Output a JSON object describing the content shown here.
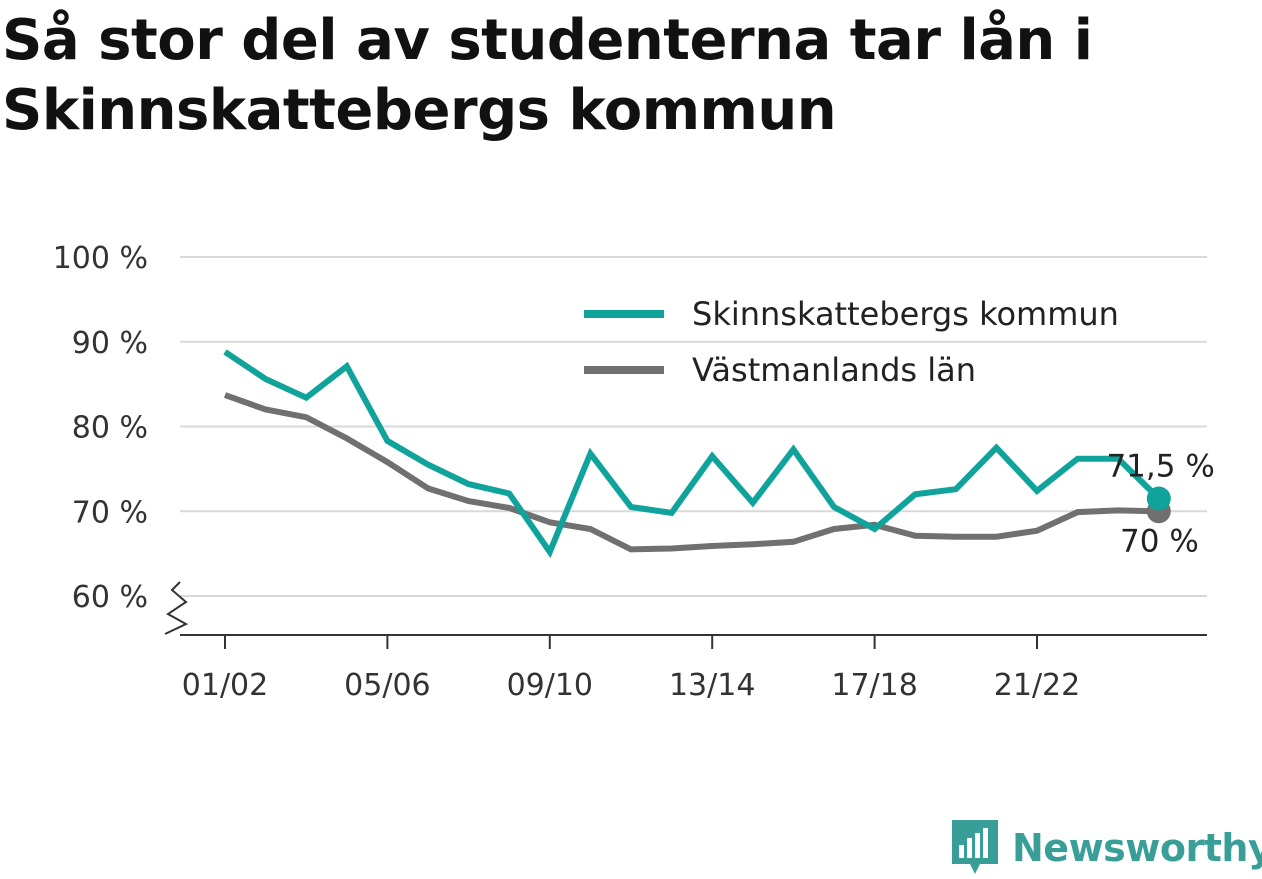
{
  "title": "Så stor del av studenterna tar lån i Skinnskattebergs kommun",
  "brand": {
    "name": "Newsworthy",
    "icon": "newsworthy-logo-icon",
    "color": "#3a9e98"
  },
  "chart_data": {
    "type": "line",
    "title": "Så stor del av studenterna tar lån i Skinnskattebergs kommun",
    "xlabel": "",
    "ylabel": "",
    "x": [
      "01/02",
      "02/03",
      "03/04",
      "04/05",
      "05/06",
      "06/07",
      "07/08",
      "08/09",
      "09/10",
      "10/11",
      "11/12",
      "12/13",
      "13/14",
      "14/15",
      "15/16",
      "16/17",
      "17/18",
      "18/19",
      "19/20",
      "20/21",
      "21/22",
      "22/23",
      "23/24",
      "24/25"
    ],
    "x_tick_labels": [
      "01/02",
      "05/06",
      "09/10",
      "13/14",
      "17/18",
      "21/22"
    ],
    "y_tick_labels": [
      "60 %",
      "70 %",
      "80 %",
      "90 %",
      "100 %"
    ],
    "ylim": [
      60,
      100
    ],
    "y_axis_break": true,
    "grid": true,
    "legend_position": "top-right",
    "series": [
      {
        "name": "Skinnskattebergs kommun",
        "color": "#0fa39c",
        "values": [
          88.8,
          85.6,
          83.4,
          87.1,
          78.3,
          75.5,
          73.2,
          72.1,
          65.2,
          76.8,
          70.5,
          69.8,
          76.5,
          71.0,
          77.3,
          70.5,
          67.9,
          72.0,
          72.6,
          77.5,
          72.4,
          76.2,
          76.2,
          71.5
        ],
        "end_label": "71,5 %"
      },
      {
        "name": "Västmanlands län",
        "color": "#707070",
        "values": [
          83.7,
          82.0,
          81.1,
          78.6,
          75.8,
          72.7,
          71.2,
          70.4,
          68.7,
          67.9,
          65.5,
          65.6,
          65.9,
          66.1,
          66.4,
          67.9,
          68.4,
          67.1,
          67.0,
          67.0,
          67.7,
          69.9,
          70.1,
          70.0
        ],
        "end_label": "70 %"
      }
    ]
  }
}
